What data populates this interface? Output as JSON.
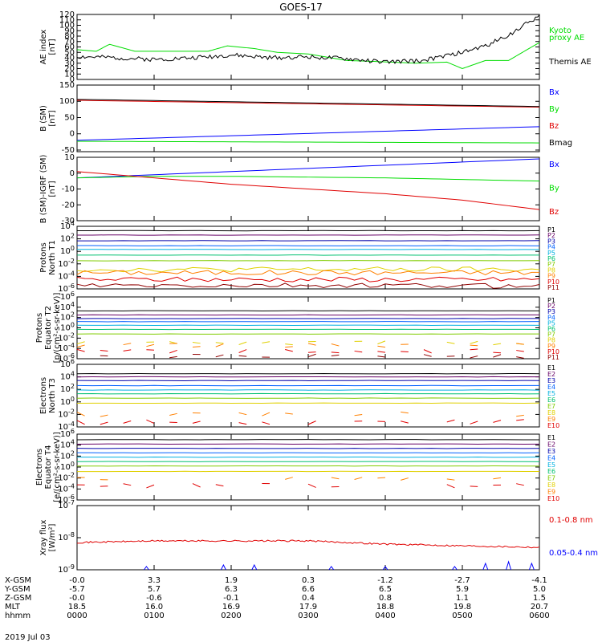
{
  "title": "GOES-17",
  "date": "2019 Jul 03",
  "colors": {
    "blue": "#0000ff",
    "green": "#00dd00",
    "red": "#e00000",
    "black": "#000000"
  },
  "xaxis": {
    "times": [
      "0000",
      "0100",
      "0200",
      "0300",
      "0400",
      "0500",
      "0600"
    ],
    "rows": [
      {
        "name": "X-GSM",
        "values": [
          "-0.0",
          "3.3",
          "1.9",
          "0.3",
          "-1.2",
          "-2.7",
          "-4.1"
        ]
      },
      {
        "name": "Y-GSM",
        "values": [
          "-5.7",
          "5.7",
          "6.3",
          "6.6",
          "6.5",
          "5.9",
          "5.0"
        ]
      },
      {
        "name": "Z-GSM",
        "values": [
          "-0.0",
          "-0.6",
          "-0.1",
          "0.4",
          "0.8",
          "1.1",
          "1.5"
        ]
      },
      {
        "name": "MLT",
        "values": [
          "18.5",
          "16.0",
          "16.9",
          "17.9",
          "18.8",
          "19.8",
          "20.7"
        ]
      },
      {
        "name": "hhmm",
        "values": [
          "0000",
          "0100",
          "0200",
          "0300",
          "0400",
          "0500",
          "0600"
        ]
      }
    ]
  },
  "chart_data": [
    {
      "type": "line",
      "panel": "AE index",
      "ylabel": [
        "AE index",
        "[nT]"
      ],
      "ylim": [
        0,
        120
      ],
      "yticks": [
        "0",
        "10",
        "20",
        "30",
        "40",
        "50",
        "60",
        "70",
        "80",
        "90",
        "100",
        "110",
        "120"
      ],
      "legend": [
        {
          "text": "Kyoto",
          "color": "#00dd00"
        },
        {
          "text": "proxy AE",
          "color": "#00dd00"
        },
        {
          "text": "Themis AE",
          "color": "#000000"
        }
      ],
      "series": [
        {
          "name": "Kyoto proxy AE",
          "color": "#00dd00",
          "x": [
            0,
            0.25,
            0.42,
            0.75,
            1.0,
            1.3,
            1.7,
            1.95,
            2.3,
            2.6,
            3.0,
            3.5,
            3.9,
            4.4,
            4.8,
            5.0,
            5.3,
            5.6,
            5.9,
            6.0
          ],
          "y": [
            55,
            52,
            65,
            52,
            52,
            52,
            52,
            62,
            57,
            50,
            47,
            35,
            33,
            30,
            32,
            20,
            35,
            35,
            60,
            68
          ]
        },
        {
          "name": "Themis AE",
          "color": "#000000",
          "x": [
            0,
            0.5,
            1.0,
            1.5,
            2.0,
            2.5,
            3.0,
            3.5,
            4.0,
            4.5,
            5.0,
            5.3,
            5.6,
            5.8,
            6.0
          ],
          "y": [
            42,
            40,
            37,
            40,
            45,
            40,
            42,
            38,
            32,
            35,
            50,
            62,
            82,
            100,
            118
          ]
        }
      ]
    },
    {
      "type": "line",
      "panel": "B (SM)",
      "ylabel": [
        "B (SM)",
        "[nT]"
      ],
      "ylim": [
        -55,
        150
      ],
      "yticks": [
        "-50",
        "0",
        "50",
        "100",
        "150"
      ],
      "legend": [
        {
          "text": "Bx",
          "color": "#0000ff"
        },
        {
          "text": "By",
          "color": "#00dd00"
        },
        {
          "text": "Bz",
          "color": "#e00000"
        },
        {
          "text": "Bmag",
          "color": "#000000"
        }
      ],
      "series": [
        {
          "name": "Bx",
          "color": "#0000ff",
          "x": [
            0,
            6
          ],
          "y": [
            -20,
            22
          ]
        },
        {
          "name": "By",
          "color": "#00dd00",
          "x": [
            0,
            6
          ],
          "y": [
            -23,
            -28
          ]
        },
        {
          "name": "Bz",
          "color": "#e00000",
          "x": [
            0,
            6
          ],
          "y": [
            103,
            82
          ]
        },
        {
          "name": "Bmag",
          "color": "#000000",
          "x": [
            0,
            6
          ],
          "y": [
            106,
            84
          ]
        }
      ]
    },
    {
      "type": "line",
      "panel": "B (SM)-IGRF (SM)",
      "ylabel": [
        "B (SM)-IGRF (SM)",
        "[nT]"
      ],
      "ylim": [
        -30,
        10
      ],
      "yticks": [
        "-30",
        "-20",
        "-10",
        "0",
        "10"
      ],
      "legend": [
        {
          "text": "Bx",
          "color": "#0000ff"
        },
        {
          "text": "By",
          "color": "#00dd00"
        },
        {
          "text": "Bz",
          "color": "#e00000"
        }
      ],
      "series": [
        {
          "name": "Bx",
          "color": "#0000ff",
          "x": [
            0,
            1,
            2,
            3,
            4,
            5,
            6
          ],
          "y": [
            -3,
            -1,
            1,
            3,
            5,
            7,
            9
          ]
        },
        {
          "name": "By",
          "color": "#00dd00",
          "x": [
            0,
            1,
            2,
            3,
            4,
            5,
            6
          ],
          "y": [
            -3,
            -2,
            -2,
            -2.5,
            -3,
            -4,
            -5
          ]
        },
        {
          "name": "Bz",
          "color": "#e00000",
          "x": [
            0,
            1,
            2,
            3,
            4,
            5,
            6
          ],
          "y": [
            1,
            -3,
            -7,
            -10,
            -13,
            -17,
            -23
          ]
        }
      ]
    },
    {
      "type": "line",
      "panel": "Protons North T1",
      "ylabel": [
        "Protons",
        "North T1"
      ],
      "log": true,
      "ylim": [
        -6,
        4
      ],
      "yticks": [
        "10^-6",
        "10^-4",
        "10^-2",
        "10^0",
        "10^2",
        "10^4"
      ],
      "legend": [
        "P1",
        "P2",
        "P3",
        "P4",
        "P5",
        "P6",
        "P7",
        "P8",
        "P9",
        "P10",
        "P11"
      ],
      "levels": [
        3.3,
        2.6,
        1.7,
        0.9,
        0.3,
        -0.6,
        -1.5,
        -2.9,
        -3.4,
        -4.5,
        -5.5
      ]
    },
    {
      "type": "line",
      "panel": "Protons Equator T2",
      "ylabel": [
        "Protons",
        "Equator T2",
        "[p/(cm²-s-sr-keV)]"
      ],
      "log": true,
      "ylim": [
        -6,
        6
      ],
      "yticks": [
        "10^-6",
        "10^-4",
        "10^-2",
        "10^0",
        "10^2",
        "10^4",
        "10^6"
      ],
      "legend": [
        "P1",
        "P2",
        "P3",
        "P4",
        "P5",
        "P6",
        "P7",
        "P8",
        "P9",
        "P10",
        "P11"
      ],
      "levels": [
        3.3,
        2.5,
        1.8,
        1.2,
        0.5,
        -0.3,
        -1.2,
        -2.9,
        -3.4,
        -4.5,
        -5.5
      ]
    },
    {
      "type": "line",
      "panel": "Electrons North T3",
      "ylabel": [
        "Electrons",
        "North T3"
      ],
      "log": true,
      "ylim": [
        -4,
        6
      ],
      "yticks": [
        "10^-4",
        "10^-2",
        "10^0",
        "10^2",
        "10^4",
        "10^6"
      ],
      "legend": [
        "E1",
        "E2",
        "E3",
        "E4",
        "E5",
        "E6",
        "E7",
        "E8",
        "E9",
        "E10"
      ],
      "levels": [
        4.5,
        4.0,
        3.4,
        2.6,
        1.9,
        1.3,
        0.6,
        -0.2,
        -2.0,
        -3.2
      ]
    },
    {
      "type": "line",
      "panel": "Electrons Equator T4",
      "ylabel": [
        "Electrons",
        "Equator T4",
        "[e/(cm²-s-sr-keV)]"
      ],
      "log": true,
      "ylim": [
        -6,
        6
      ],
      "yticks": [
        "10^-6",
        "10^-4",
        "10^-2",
        "10^0",
        "10^2",
        "10^4",
        "10^6"
      ],
      "legend": [
        "E1",
        "E2",
        "E3",
        "E4",
        "E5",
        "E6",
        "E7",
        "E8",
        "E9",
        "E10"
      ],
      "levels": [
        5.0,
        4.2,
        3.4,
        2.6,
        1.8,
        1.0,
        0.2,
        -0.8,
        -2.2,
        -3.4
      ]
    },
    {
      "type": "line",
      "panel": "Xray flux",
      "ylabel": [
        "Xray flux",
        "[W/m²]"
      ],
      "log": true,
      "ylim": [
        -9,
        -7
      ],
      "yticks": [
        "10^-9",
        "10^-8",
        "10^-7"
      ],
      "legend": [
        {
          "text": "0.1-0.8 nm",
          "color": "#e00000"
        },
        {
          "text": "0.05-0.4 nm",
          "color": "#0000ff"
        }
      ],
      "series": [
        {
          "name": "0.1-0.8 nm",
          "color": "#e00000",
          "x": [
            0,
            1,
            2,
            3,
            4,
            5,
            6
          ],
          "y": [
            -8.15,
            -8.1,
            -8.1,
            -8.1,
            -8.2,
            -8.25,
            -8.3
          ]
        },
        {
          "name": "0.05-0.4 nm",
          "color": "#0000ff",
          "x": [
            0.9,
            1.9,
            2.3,
            3.3,
            4.0,
            4.9,
            5.3,
            5.6,
            5.9
          ],
          "y": [
            -8.9,
            -8.85,
            -8.85,
            -8.9,
            -8.9,
            -8.9,
            -8.8,
            -8.75,
            -8.8
          ]
        }
      ]
    }
  ]
}
